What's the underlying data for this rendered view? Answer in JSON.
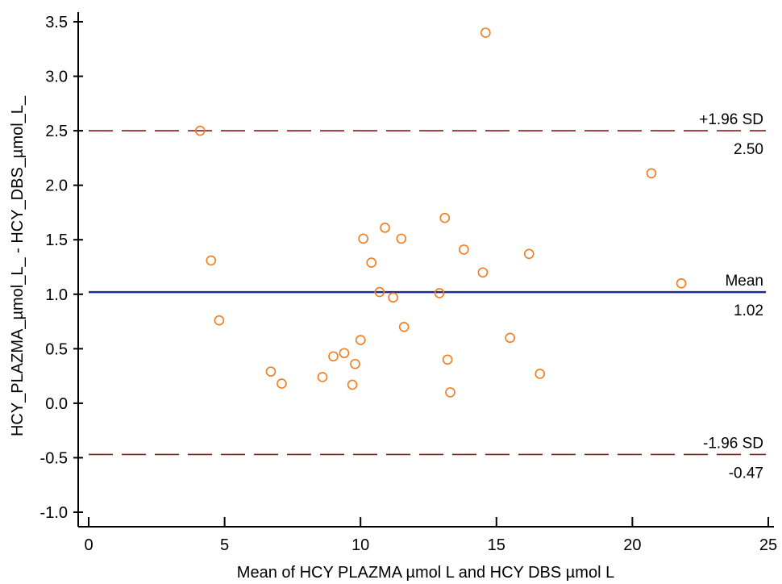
{
  "chart_data": {
    "type": "scatter",
    "title": "",
    "xlabel": "Mean of HCY  PLAZMA  µmol  L   and HCY  DBS  µmol  L",
    "ylabel": "HCY_PLAZMA_µmol_L_ - HCY_DBS_µmol_L_",
    "xlim": [
      0,
      25
    ],
    "ylim": [
      -1.0,
      3.5
    ],
    "x_ticks": [
      0,
      5,
      10,
      15,
      20,
      25
    ],
    "y_ticks": [
      -1.0,
      -0.5,
      0.0,
      0.5,
      1.0,
      1.5,
      2.0,
      2.5,
      3.0,
      3.5
    ],
    "x_tick_labels": [
      "0",
      "5",
      "10",
      "15",
      "20",
      "25"
    ],
    "y_tick_labels": [
      "-1.0",
      "-0.5",
      "0.0",
      "0.5",
      "1.0",
      "1.5",
      "2.0",
      "2.5",
      "3.0",
      "3.5"
    ],
    "grid": false,
    "reference_lines": [
      {
        "label": "+1.96 SD",
        "value": 2.5,
        "value_label": "2.50",
        "style": "dashed",
        "color": "#8b1a1a"
      },
      {
        "label": "Mean",
        "value": 1.02,
        "value_label": "1.02",
        "style": "solid",
        "color": "#1f2a8a"
      },
      {
        "label": "-1.96 SD",
        "value": -0.47,
        "value_label": "-0.47",
        "style": "dashed",
        "color": "#8b1a1a"
      }
    ],
    "point_color": "#f07c1e",
    "points": [
      {
        "x": 4.1,
        "y": 2.5
      },
      {
        "x": 4.5,
        "y": 1.31
      },
      {
        "x": 4.8,
        "y": 0.76
      },
      {
        "x": 6.7,
        "y": 0.29
      },
      {
        "x": 7.1,
        "y": 0.18
      },
      {
        "x": 8.6,
        "y": 0.24
      },
      {
        "x": 9.0,
        "y": 0.43
      },
      {
        "x": 9.4,
        "y": 0.46
      },
      {
        "x": 9.7,
        "y": 0.17
      },
      {
        "x": 9.8,
        "y": 0.36
      },
      {
        "x": 10.0,
        "y": 0.58
      },
      {
        "x": 10.1,
        "y": 1.51
      },
      {
        "x": 10.4,
        "y": 1.29
      },
      {
        "x": 10.7,
        "y": 1.02
      },
      {
        "x": 10.9,
        "y": 1.61
      },
      {
        "x": 11.2,
        "y": 0.97
      },
      {
        "x": 11.5,
        "y": 1.51
      },
      {
        "x": 11.6,
        "y": 0.7
      },
      {
        "x": 12.9,
        "y": 1.01
      },
      {
        "x": 13.1,
        "y": 1.7
      },
      {
        "x": 13.2,
        "y": 0.4
      },
      {
        "x": 13.3,
        "y": 0.1
      },
      {
        "x": 13.8,
        "y": 1.41
      },
      {
        "x": 14.5,
        "y": 1.2
      },
      {
        "x": 14.6,
        "y": 3.4
      },
      {
        "x": 15.5,
        "y": 0.6
      },
      {
        "x": 16.2,
        "y": 1.37
      },
      {
        "x": 16.6,
        "y": 0.27
      },
      {
        "x": 20.7,
        "y": 2.11
      },
      {
        "x": 21.8,
        "y": 1.1
      }
    ]
  }
}
